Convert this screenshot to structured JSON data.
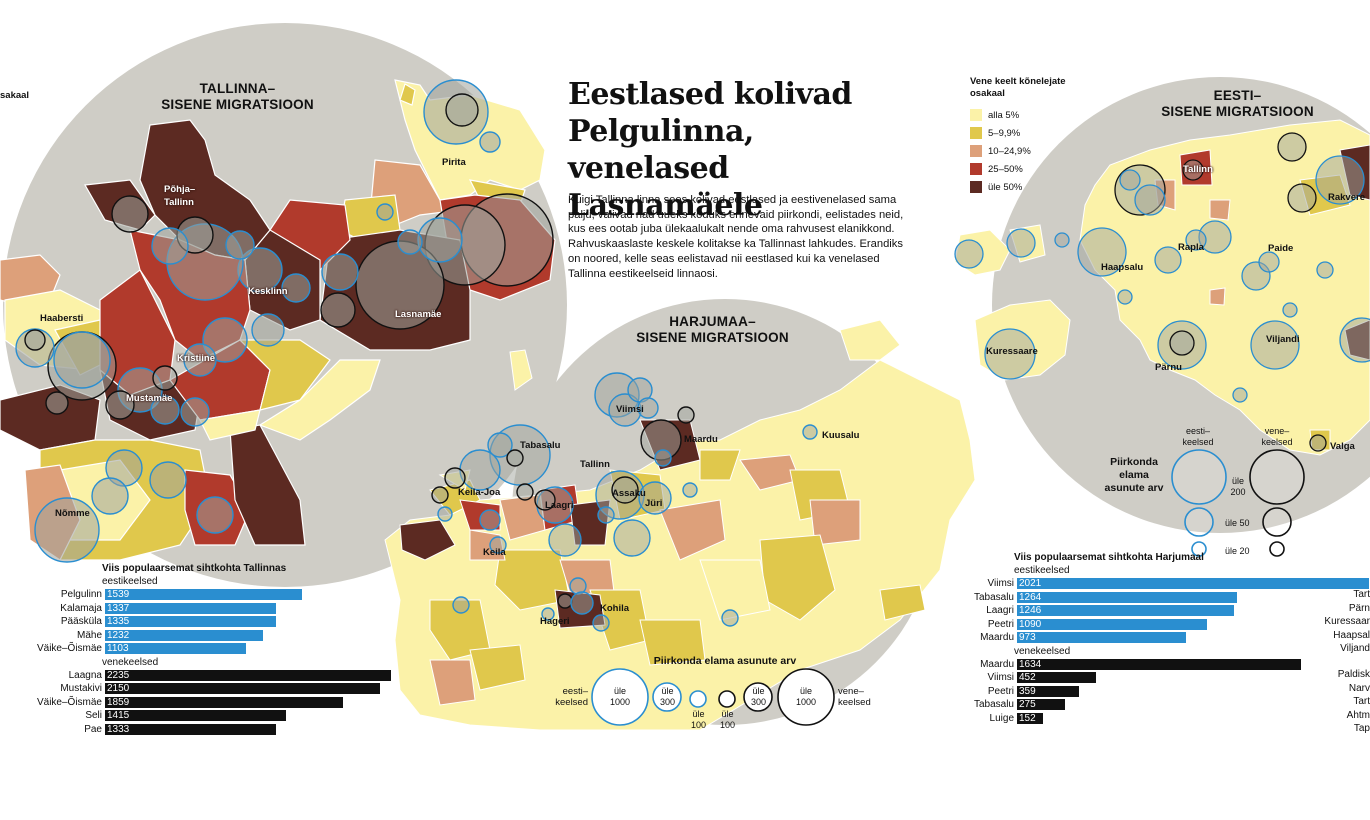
{
  "headline": {
    "line1": "Eestlased kolivad",
    "line2": "Pelgulinna, venelased",
    "line3": "Lasnamäele"
  },
  "lead": "Kuigi Tallinna linna sees kolivad eestlased ja eestivenelased sama palju, valivad nad uueks koduks erinevaid piirkondi, eelistades neid, kus ees ootab juba ülekaalukalt nende oma rahvusest elanikkond. Rahvuskaaslaste keskele kolitakse ka Tallinnast lahkudes. Erandiks on noored, kelle seas eelistavad nii eestlased kui ka venelased Tallinna eestikeelseid linnaosi.",
  "left_edge_fragment": "sakaal",
  "sections": {
    "tallinn": {
      "line1": "TALLINNA–",
      "line2": "SISENE MIGRATSIOON"
    },
    "harjumaa": {
      "line1": "HARJUMAA–",
      "line2": "SISENE MIGRATSIOON"
    },
    "eesti": {
      "line1": "EESTI–",
      "line2": "SISENE MIGRATSIOON"
    }
  },
  "places": {
    "tallinn": [
      "Pirita",
      "Põhja–",
      "Tallinn",
      "Kesklinn",
      "Lasnamäe",
      "Haabersti",
      "Kristiine",
      "Mustamäe",
      "Nõmme"
    ],
    "harjumaa": [
      "Viimsi",
      "Maardu",
      "Kuusalu",
      "Tabasalu",
      "Tallinn",
      "Keila-Joa",
      "Assaku",
      "Jüri",
      "Laagri",
      "Keila",
      "Kohila",
      "Hageri"
    ],
    "eesti": [
      "Tallinn",
      "Rakvere",
      "Rapla",
      "Paide",
      "Haapsalu",
      "Kuressaare",
      "Pärnu",
      "Viljandi",
      "Valga"
    ]
  },
  "legend": {
    "title": "Vene keelt kõnelejate osakaal",
    "items": [
      {
        "label": "alla 5%",
        "color": "#fbf2a8"
      },
      {
        "label": "5–9,9%",
        "color": "#e0c84c"
      },
      {
        "label": "10–24,9%",
        "color": "#dda07a"
      },
      {
        "label": "25–50%",
        "color": "#b13a2c"
      },
      {
        "label": "üle 50%",
        "color": "#5c2a22"
      }
    ]
  },
  "colors": {
    "circle_bg": "#cfcdc6",
    "eesti_circle": "#2a8ed0",
    "vene_circle": "#111111"
  },
  "harju_size_legend": {
    "title": "Piirkonda elama asunute arv",
    "left_label": "eesti–keelsed",
    "right_label": "vene–keelsed",
    "sizes": [
      "üle 1000",
      "üle 300",
      "üle 100",
      "üle 100",
      "üle 300",
      "üle 1000"
    ]
  },
  "eesti_size_legend": {
    "title": "Piirkonda elama asunute arv",
    "eesti_label": "eesti–keelsed",
    "vene_label": "vene–keelsed",
    "sizes": [
      "üle 200",
      "üle 50",
      "üle 20"
    ]
  },
  "chart_data": [
    {
      "type": "bar",
      "title": "Viis populaarsemat sihtkohta Tallinnas",
      "series": [
        {
          "name": "eestikeelsed",
          "categories": [
            "Pelgulinn",
            "Kalamaja",
            "Pääsküla",
            "Mähe",
            "Väike–Õismäe"
          ],
          "values": [
            1539,
            1337,
            1335,
            1232,
            1103
          ]
        },
        {
          "name": "venekeelsed",
          "categories": [
            "Laagna",
            "Mustakivi",
            "Väike–Õismäe",
            "Seli",
            "Pae"
          ],
          "values": [
            2235,
            2150,
            1859,
            1415,
            1333
          ]
        }
      ]
    },
    {
      "type": "bar",
      "title": "Viis populaarsemat sihtkohta Harjumaal",
      "series": [
        {
          "name": "eestikeelsed",
          "categories": [
            "Viimsi",
            "Tabasalu",
            "Laagri",
            "Peetri",
            "Maardu"
          ],
          "values": [
            2021,
            1264,
            1246,
            1090,
            973
          ]
        },
        {
          "name": "venekeelsed",
          "categories": [
            "Maardu",
            "Viimsi",
            "Peetri",
            "Tabasalu",
            "Luige"
          ],
          "values": [
            1634,
            452,
            359,
            275,
            152
          ]
        }
      ]
    }
  ],
  "cut_labels": {
    "group1": [
      "Tart",
      "Pärn",
      "Kuressaar",
      "Haapsal",
      "Viljand"
    ],
    "group2": [
      "Paldisk",
      "Narv",
      "Tart",
      "Ahtm",
      "Tap"
    ]
  }
}
